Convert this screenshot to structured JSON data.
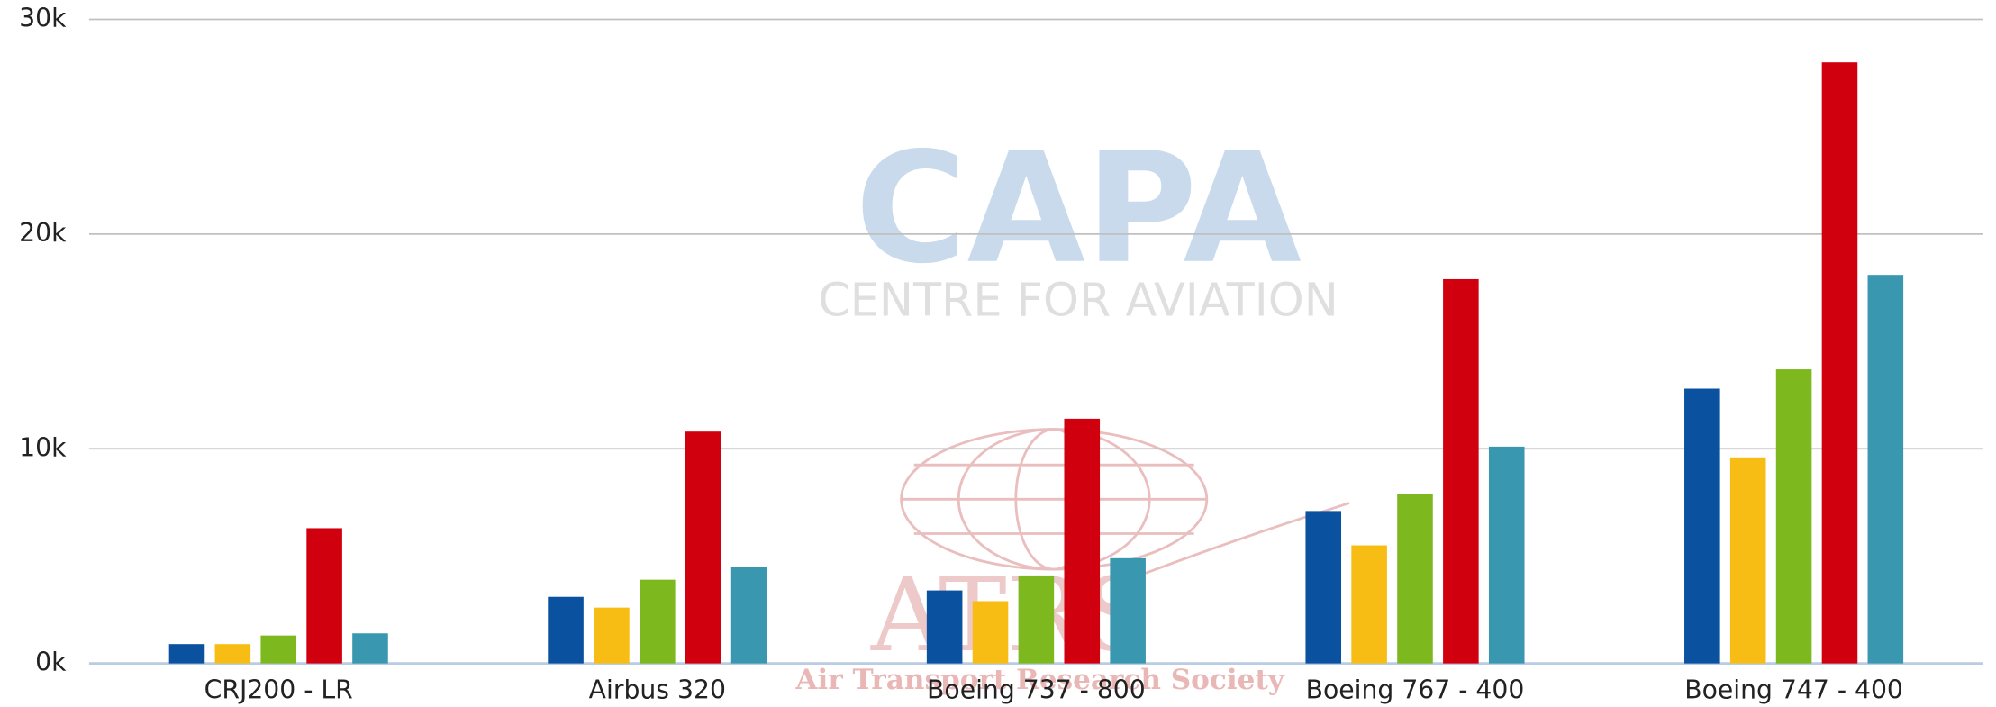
{
  "chart_data": {
    "type": "bar",
    "categories": [
      "CRJ200 - LR",
      "Airbus 320",
      "Boeing 737 - 800",
      "Boeing 767 - 400",
      "Boeing 747 - 400"
    ],
    "series": [
      {
        "color": "#0a52a0",
        "values": [
          900,
          3100,
          3400,
          7100,
          12800
        ]
      },
      {
        "color": "#f8bd14",
        "values": [
          900,
          2600,
          2900,
          5500,
          9600
        ]
      },
      {
        "color": "#7db81e",
        "values": [
          1300,
          3900,
          4100,
          7900,
          13700
        ]
      },
      {
        "color": "#d0000e",
        "values": [
          6300,
          10800,
          11400,
          17900,
          28000
        ]
      },
      {
        "color": "#3a97b0",
        "values": [
          1400,
          4500,
          4900,
          10100,
          18100
        ]
      }
    ],
    "ylim": [
      0,
      30000
    ],
    "yticks": [
      {
        "value": 0,
        "label": "0k"
      },
      {
        "value": 10000,
        "label": "10k"
      },
      {
        "value": 20000,
        "label": "20k"
      },
      {
        "value": 30000,
        "label": "30k"
      }
    ],
    "grid": true,
    "watermark": {
      "logo": "CAPA",
      "logo_subtitle": "CENTRE FOR AVIATION",
      "society_logo": "ATRS",
      "society": "Air Transport Research Society"
    }
  }
}
